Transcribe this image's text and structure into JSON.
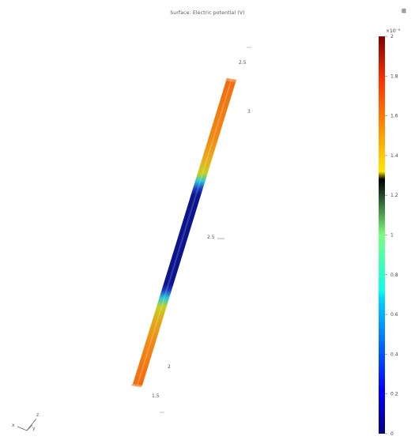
{
  "title": "Surface: Electric potential (V)",
  "toolbar_icon": "graph-toolbar-icon",
  "colorbar": {
    "exponent_label": "×10⁻⁹",
    "ticks": [
      "2",
      "1.8",
      "1.6",
      "1.4",
      "1.2",
      "1",
      "0.8",
      "0.6",
      "0.4",
      "0.2",
      "0"
    ],
    "colormap": "jet"
  },
  "axis_labels": {
    "top_a": "2.5",
    "top_b": "3",
    "mid": "2.5",
    "bottom_a": "2",
    "bottom_b": "1.5"
  },
  "triad": {
    "x": "x",
    "y": "y",
    "z": "z"
  }
}
